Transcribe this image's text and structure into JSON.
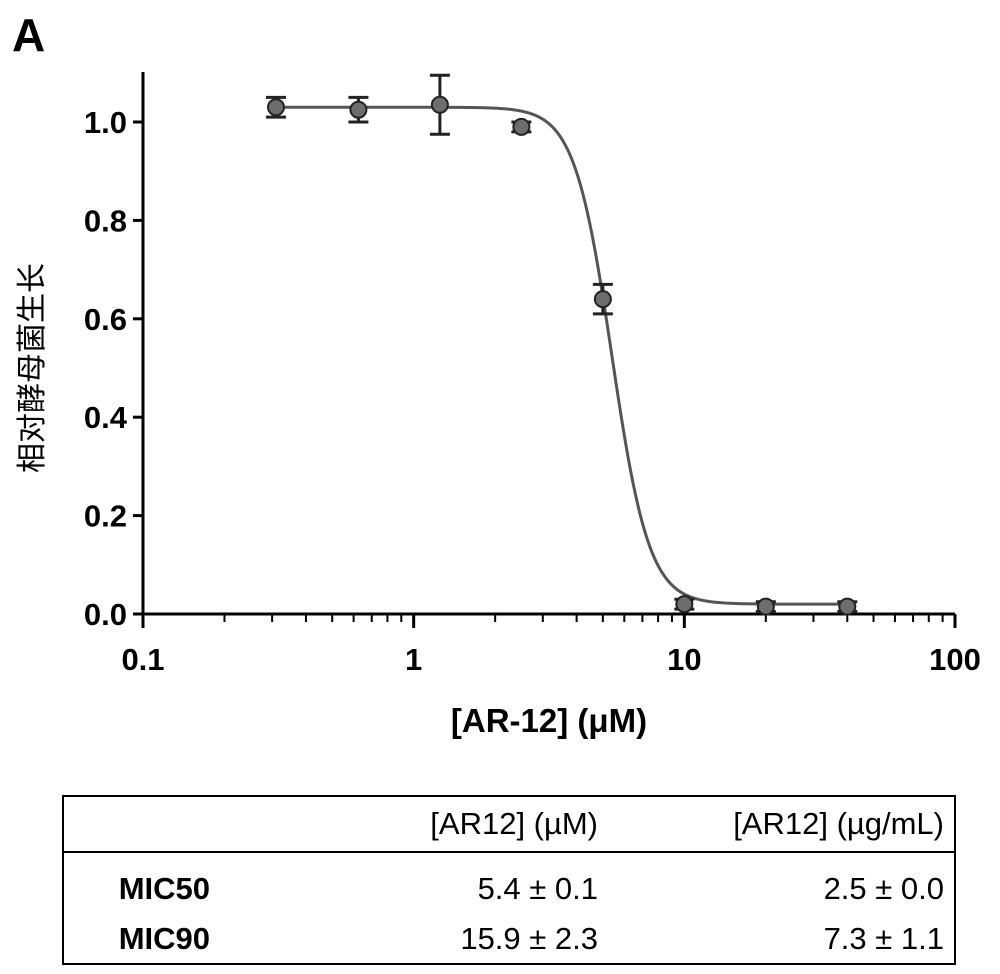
{
  "panel_label": "A",
  "chart_data": {
    "type": "scatter",
    "title": "",
    "xlabel": "[AR-12] (μM)",
    "ylabel": "相对酵母菌生长",
    "x_scale": "log",
    "xlim": [
      0.1,
      100
    ],
    "ylim": [
      0,
      1.1
    ],
    "x_ticks": [
      0.1,
      1,
      10,
      100
    ],
    "x_tick_labels": [
      "0.1",
      "1",
      "10",
      "100"
    ],
    "y_ticks": [
      0,
      0.2,
      0.4,
      0.6,
      0.8,
      1.0
    ],
    "y_tick_labels": [
      "0.0",
      "0.2",
      "0.4",
      "0.6",
      "0.8",
      "1.0"
    ],
    "grid": false,
    "legend": "none",
    "series": [
      {
        "x": [
          0.31,
          0.625,
          1.25,
          2.5,
          5,
          10,
          20,
          40
        ],
        "y": [
          1.03,
          1.025,
          1.035,
          0.99,
          0.64,
          0.02,
          0.015,
          0.015
        ],
        "err": [
          0.02,
          0.025,
          0.06,
          0.01,
          0.03,
          0.01,
          0.01,
          0.01
        ]
      }
    ],
    "fit": {
      "type": "sigmoid",
      "top": 1.03,
      "bottom": 0.02,
      "ic50": 5.4,
      "hill": 6.3
    }
  },
  "table": {
    "headers": [
      "",
      "[AR12] (µM)",
      "[AR12] (µg/mL)"
    ],
    "rows": [
      {
        "label": "MIC50",
        "um": "5.4 ± 0.1",
        "ugml": "2.5 ± 0.0"
      },
      {
        "label": "MIC90",
        "um": "15.9 ± 2.3",
        "ugml": "7.3 ± 1.1"
      }
    ]
  }
}
